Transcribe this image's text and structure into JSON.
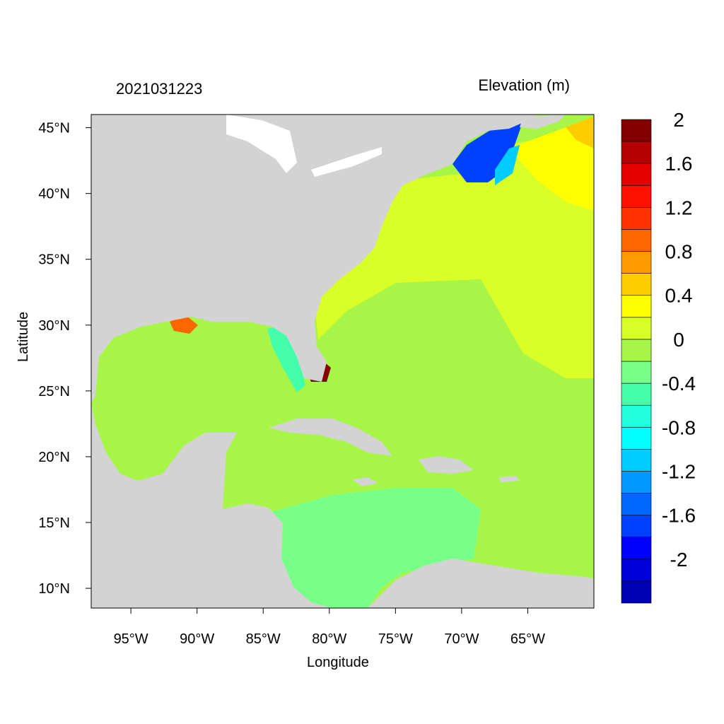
{
  "timestamp": "2021031223",
  "variable": "Elevation (m)",
  "xlabel": "Longitude",
  "ylabel": "Latitude",
  "colors": {
    "land": "#d3d3d3",
    "ocean_base": "#a6f547"
  },
  "map": {
    "lon_range": [
      -98,
      -60
    ],
    "lat_range": [
      8.5,
      46
    ],
    "lon_ticks": [
      {
        "value": -95,
        "label": "95°W"
      },
      {
        "value": -90,
        "label": "90°W"
      },
      {
        "value": -85,
        "label": "85°W"
      },
      {
        "value": -80,
        "label": "80°W"
      },
      {
        "value": -75,
        "label": "75°W"
      },
      {
        "value": -70,
        "label": "70°W"
      },
      {
        "value": -65,
        "label": "65°W"
      }
    ],
    "lat_ticks": [
      {
        "value": 45,
        "label": "45°N"
      },
      {
        "value": 40,
        "label": "40°N"
      },
      {
        "value": 35,
        "label": "35°N"
      },
      {
        "value": 30,
        "label": "30°N"
      },
      {
        "value": 25,
        "label": "25°N"
      },
      {
        "value": 20,
        "label": "20°N"
      },
      {
        "value": 15,
        "label": "15°N"
      },
      {
        "value": 10,
        "label": "10°N"
      }
    ]
  },
  "colorbar": {
    "colors": [
      "#0000b4",
      "#0000d8",
      "#0000ff",
      "#0040ff",
      "#0066ff",
      "#0099ff",
      "#00ccff",
      "#00ffff",
      "#22ffdd",
      "#44ffaa",
      "#77ff88",
      "#a6f547",
      "#d9ff26",
      "#ffff00",
      "#ffcc00",
      "#ff9900",
      "#ff6600",
      "#ff3300",
      "#ff1100",
      "#e60000",
      "#b40000",
      "#820000"
    ],
    "labels": [
      "-2",
      "-1.6",
      "-1.2",
      "-0.8",
      "-0.4",
      "0",
      "0.4",
      "0.8",
      "1.2",
      "1.6",
      "2"
    ]
  }
}
